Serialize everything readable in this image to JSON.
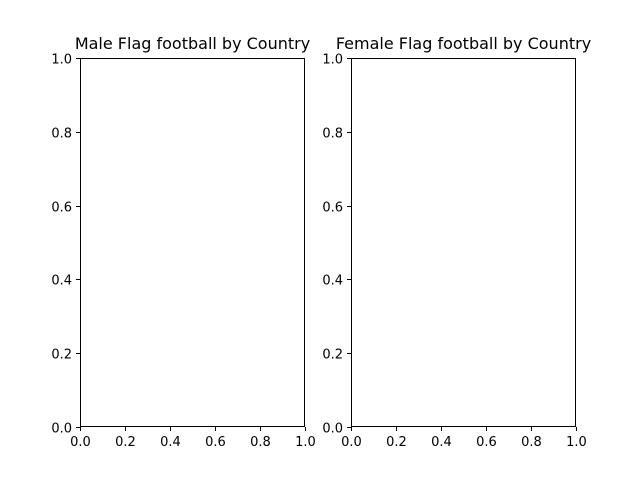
{
  "chart_data": [
    {
      "type": "bar",
      "title": "Male Flag football by Country",
      "xlabel": "",
      "ylabel": "",
      "categories": [],
      "values": [],
      "xlim": [
        0.0,
        1.0
      ],
      "ylim": [
        0.0,
        1.0
      ],
      "x_ticks": [
        "0.0",
        "0.2",
        "0.4",
        "0.6",
        "0.8",
        "1.0"
      ],
      "y_ticks": [
        "0.0",
        "0.2",
        "0.4",
        "0.6",
        "0.8",
        "1.0"
      ],
      "grid": false
    },
    {
      "type": "bar",
      "title": "Female Flag football by Country",
      "xlabel": "",
      "ylabel": "",
      "categories": [],
      "values": [],
      "xlim": [
        0.0,
        1.0
      ],
      "ylim": [
        0.0,
        1.0
      ],
      "x_ticks": [
        "0.0",
        "0.2",
        "0.4",
        "0.6",
        "0.8",
        "1.0"
      ],
      "y_ticks": [
        "0.0",
        "0.2",
        "0.4",
        "0.6",
        "0.8",
        "1.0"
      ],
      "grid": false
    }
  ]
}
